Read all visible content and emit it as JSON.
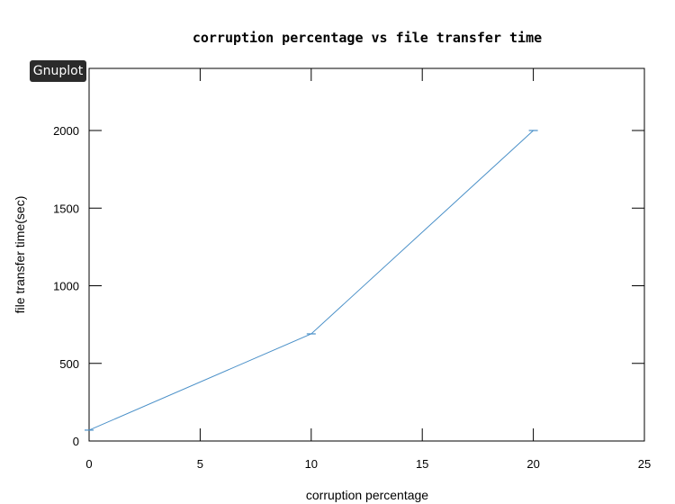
{
  "badge": {
    "label": "Gnuplot"
  },
  "colors": {
    "series": "#4a90c8",
    "axis": "#000000"
  },
  "chart_data": {
    "type": "line",
    "title": "corruption percentage vs file transfer time",
    "xlabel": "corruption percentage",
    "ylabel": "file transfer time(sec)",
    "xlim": [
      0,
      25
    ],
    "ylim": [
      0,
      2400
    ],
    "xticks": [
      0,
      5,
      10,
      15,
      20,
      25
    ],
    "yticks": [
      0,
      500,
      1000,
      1500,
      2000
    ],
    "grid": false,
    "series": [
      {
        "x": [
          0,
          10,
          20
        ],
        "y": [
          70,
          690,
          2000
        ],
        "error_bars": true
      }
    ]
  }
}
